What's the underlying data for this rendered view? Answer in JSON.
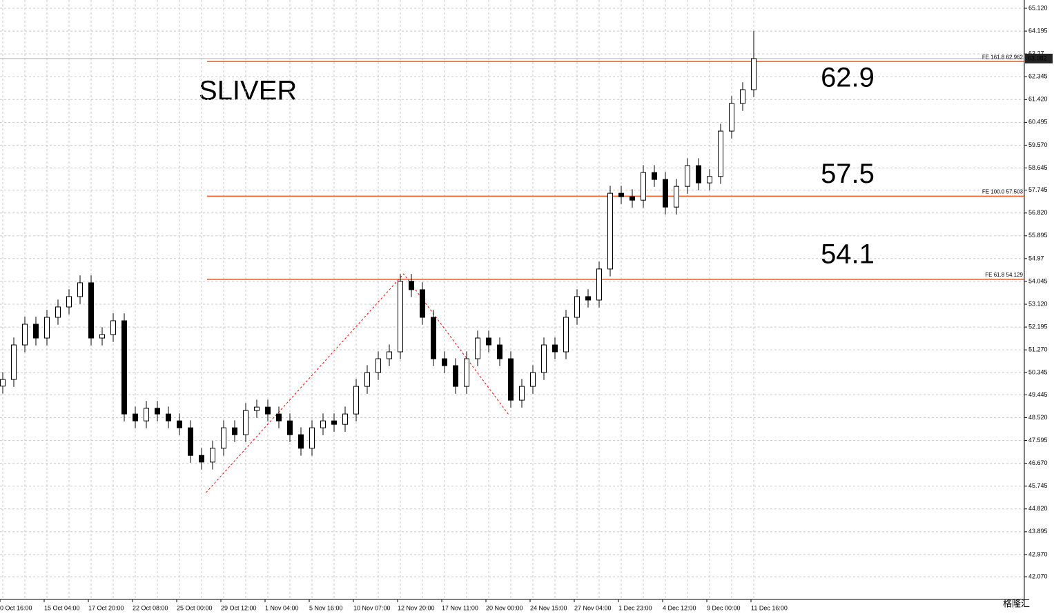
{
  "chart_data": {
    "type": "candlestick",
    "title": "SLIVER",
    "title_color": "#ff0000",
    "categories": [
      "0 Oct 16:00",
      null,
      null,
      null,
      "15 Oct 04:00",
      null,
      null,
      null,
      "17 Oct 20:00",
      null,
      null,
      null,
      "22 Oct 08:00",
      null,
      null,
      null,
      "25 Oct 00:00",
      null,
      null,
      null,
      "29 Oct 12:00",
      null,
      null,
      null,
      "1 Nov 04:00",
      null,
      null,
      null,
      "5 Nov 16:00",
      null,
      null,
      null,
      "10 Nov 07:00",
      null,
      null,
      null,
      "12 Nov 20:00",
      null,
      null,
      null,
      "17 Nov 11:00",
      null,
      null,
      null,
      "20 Nov 00:00",
      null,
      null,
      null,
      "24 Nov 15:00",
      null,
      null,
      null,
      "27 Nov 04:00",
      null,
      null,
      null,
      "1 Dec 23:00",
      null,
      null,
      null,
      "4 Dec 12:00",
      null,
      null,
      null,
      "9 Dec 00:00",
      null,
      null,
      null,
      "11 Dec 16:00"
    ],
    "open": [
      49.8,
      50.07,
      51.47,
      52.31,
      51.75,
      52.59,
      53.01,
      53.43,
      53.99,
      51.75,
      51.89,
      52.45,
      48.67,
      48.39,
      48.9,
      48.67,
      48.39,
      48.11,
      46.99,
      46.72,
      47.28,
      48.11,
      47.83,
      48.81,
      48.95,
      48.67,
      48.39,
      47.83,
      47.28,
      48.11,
      48.39,
      48.25,
      48.67,
      49.79,
      50.35,
      50.91,
      51.19,
      54.05,
      53.71,
      52.59,
      50.91,
      50.63,
      49.79,
      50.91,
      51.75,
      51.47,
      50.91,
      49.23,
      49.79,
      50.35,
      51.47,
      51.19,
      52.59,
      53.43,
      53.29,
      54.55,
      57.62,
      57.48,
      57.34,
      58.46,
      58.18,
      57.06,
      57.9,
      58.74,
      58.04,
      58.3,
      60.14,
      61.26,
      61.82
    ],
    "high": [
      50.37,
      51.77,
      52.61,
      52.61,
      52.89,
      53.31,
      53.73,
      54.29,
      54.29,
      52.19,
      52.75,
      52.75,
      48.97,
      49.2,
      49.2,
      48.97,
      48.69,
      48.41,
      47.29,
      47.58,
      48.41,
      48.41,
      49.11,
      49.25,
      49.25,
      48.97,
      48.69,
      48.13,
      48.41,
      48.69,
      48.69,
      48.97,
      50.09,
      50.65,
      51.21,
      51.49,
      54.35,
      54.35,
      54.01,
      52.89,
      51.21,
      50.93,
      51.21,
      52.05,
      52.05,
      51.77,
      51.21,
      50.09,
      50.65,
      51.77,
      51.77,
      52.89,
      53.73,
      53.73,
      54.85,
      57.92,
      57.92,
      57.78,
      58.76,
      58.76,
      58.48,
      58.2,
      59.04,
      59.04,
      58.6,
      60.44,
      61.56,
      62.12,
      64.2
    ],
    "low": [
      49.5,
      49.77,
      51.17,
      51.45,
      51.45,
      52.29,
      52.71,
      53.13,
      51.45,
      51.45,
      51.59,
      48.37,
      48.09,
      48.09,
      48.37,
      48.09,
      47.81,
      46.69,
      46.42,
      46.42,
      46.98,
      47.53,
      47.53,
      48.51,
      48.37,
      48.09,
      47.53,
      46.98,
      46.98,
      47.81,
      47.95,
      47.95,
      48.37,
      49.49,
      50.05,
      50.61,
      50.89,
      53.41,
      52.29,
      50.61,
      50.33,
      49.49,
      49.49,
      50.61,
      51.17,
      50.61,
      48.93,
      48.93,
      49.49,
      50.05,
      50.89,
      50.89,
      52.29,
      52.99,
      52.99,
      54.25,
      57.18,
      57.04,
      57.04,
      57.88,
      56.76,
      56.76,
      57.6,
      57.74,
      57.74,
      58.0,
      59.84,
      60.96,
      61.52
    ],
    "close": [
      50.07,
      51.47,
      52.31,
      51.75,
      52.59,
      53.01,
      53.43,
      53.99,
      51.75,
      51.89,
      52.45,
      48.67,
      48.39,
      48.9,
      48.67,
      48.39,
      48.11,
      46.99,
      46.72,
      47.28,
      48.11,
      47.83,
      48.81,
      48.95,
      48.67,
      48.39,
      47.83,
      47.28,
      48.11,
      48.39,
      48.25,
      48.67,
      49.79,
      50.35,
      50.91,
      51.19,
      54.05,
      53.71,
      52.59,
      50.91,
      50.63,
      49.79,
      50.91,
      51.75,
      51.47,
      50.91,
      49.23,
      49.79,
      50.35,
      51.47,
      51.19,
      52.59,
      53.43,
      53.29,
      54.55,
      57.62,
      57.48,
      57.34,
      58.46,
      58.18,
      57.06,
      57.9,
      58.74,
      58.04,
      58.3,
      60.14,
      61.26,
      61.82,
      63.08
    ],
    "ylim": [
      41.15,
      65.456
    ],
    "yticks": [
      {
        "value": 65.12,
        "label": "65.120"
      },
      64.195,
      63.27,
      62.345,
      {
        "value": 61.42,
        "label": "61.420"
      },
      60.495,
      {
        "value": 59.57,
        "label": "59.570"
      },
      58.645,
      57.745,
      {
        "value": 56.82,
        "label": "56.820"
      },
      55.895,
      54.97,
      54.045,
      {
        "value": 53.12,
        "label": "53.120"
      },
      52.195,
      {
        "value": 51.27,
        "label": "51.270"
      },
      50.345,
      49.445,
      {
        "value": 48.52,
        "label": "48.520"
      },
      47.595,
      {
        "value": 46.67,
        "label": "46.670"
      },
      45.745,
      {
        "value": 44.82,
        "label": "44.820"
      },
      43.895,
      {
        "value": 42.97,
        "label": "42.970"
      },
      {
        "value": 42.07,
        "label": "42.070"
      }
    ],
    "grid": true,
    "levels": [
      {
        "label": "FE 161.8 62.962",
        "value": 62.962,
        "annotation": "62.9"
      },
      {
        "label": "FE 100.0 57.503",
        "value": 57.503,
        "annotation": "57.5"
      },
      {
        "label": "FE 61.8  54.129",
        "value": 54.129,
        "annotation": "54.1"
      }
    ],
    "level_color": "#f05a1e",
    "annotation_color": "#ff0000",
    "current_price": 63.082,
    "zigzag": {
      "x": [
        18.4,
        36.3,
        45.8
      ],
      "values": [
        45.48,
        54.35,
        48.65
      ],
      "color": "#ff0000"
    },
    "watermark": "格隆汇"
  }
}
